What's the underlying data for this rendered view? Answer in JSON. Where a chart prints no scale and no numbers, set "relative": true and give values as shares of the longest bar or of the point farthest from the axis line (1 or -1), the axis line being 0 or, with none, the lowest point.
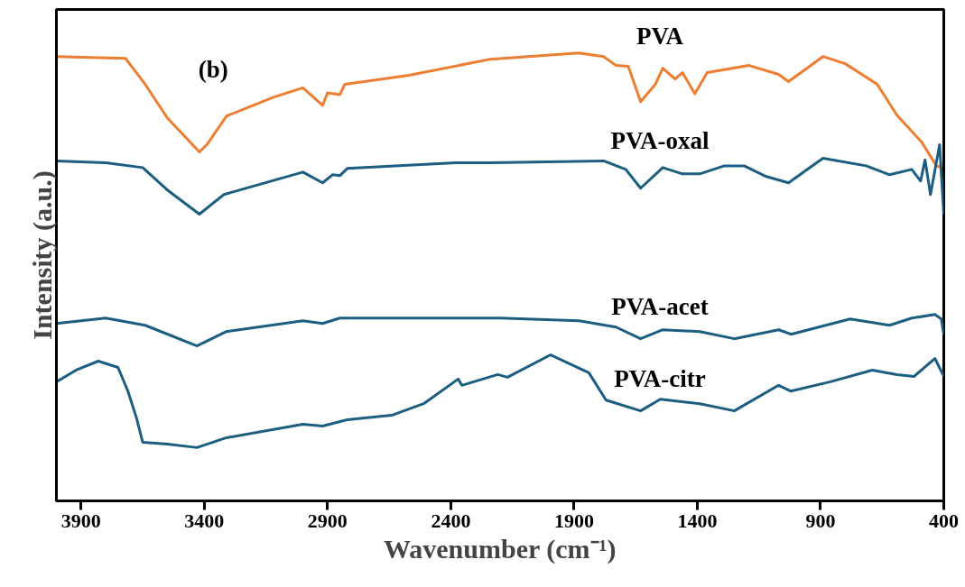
{
  "chart_data": {
    "type": "line",
    "relative": true,
    "xlabel": "Wavenumber (cm⁻¹)",
    "ylabel": "Intensity (a.u.)",
    "annotations": [
      "(b)"
    ],
    "xlim": [
      4000,
      400
    ],
    "xticks": [
      3900,
      3400,
      2900,
      2400,
      1900,
      1400,
      900,
      400
    ],
    "grid": false,
    "legend": false,
    "marker": "none",
    "line_style": "solid",
    "series": [
      {
        "name": "PVA",
        "color": "#ed7d31",
        "x": [
          4000,
          3720,
          3640,
          3550,
          3420,
          3390,
          3310,
          3120,
          3000,
          2920,
          2900,
          2850,
          2830,
          2570,
          2240,
          1880,
          1780,
          1730,
          1680,
          1630,
          1570,
          1540,
          1490,
          1460,
          1410,
          1360,
          1190,
          1070,
          1030,
          890,
          800,
          670,
          590,
          490,
          430,
          410
        ],
        "values": [
          0.992,
          0.988,
          0.93,
          0.855,
          0.779,
          0.795,
          0.859,
          0.901,
          0.922,
          0.883,
          0.911,
          0.907,
          0.93,
          0.95,
          0.986,
          1,
          0.992,
          0.972,
          0.97,
          0.891,
          0.93,
          0.966,
          0.942,
          0.956,
          0.909,
          0.956,
          0.972,
          0.952,
          0.936,
          0.992,
          0.976,
          0.93,
          0.861,
          0.801,
          0.748,
          0.744
        ]
      },
      {
        "name": "PVA-oxal",
        "color": "#1b5e82",
        "x": [
          4000,
          3800,
          3650,
          3550,
          3420,
          3320,
          3000,
          2920,
          2880,
          2850,
          2820,
          2380,
          2240,
          1780,
          1690,
          1630,
          1540,
          1460,
          1390,
          1290,
          1210,
          1120,
          1030,
          890,
          715,
          620,
          530,
          494,
          476,
          454,
          417,
          400
        ],
        "values": [
          0.759,
          0.755,
          0.744,
          0.694,
          0.64,
          0.684,
          0.734,
          0.71,
          0.728,
          0.726,
          0.742,
          0.755,
          0.755,
          0.759,
          0.74,
          0.698,
          0.744,
          0.73,
          0.73,
          0.748,
          0.748,
          0.724,
          0.71,
          0.765,
          0.748,
          0.728,
          0.74,
          0.714,
          0.761,
          0.684,
          0.795,
          0.64
        ]
      },
      {
        "name": "PVA-acet",
        "color": "#1b5e82",
        "x": [
          4000,
          3800,
          3640,
          3430,
          3310,
          3000,
          2920,
          2850,
          2200,
          1880,
          1730,
          1630,
          1540,
          1390,
          1250,
          1070,
          1020,
          780,
          620,
          530,
          436,
          410,
          400
        ],
        "values": [
          0.396,
          0.408,
          0.392,
          0.346,
          0.378,
          0.402,
          0.396,
          0.408,
          0.408,
          0.402,
          0.388,
          0.362,
          0.382,
          0.378,
          0.362,
          0.382,
          0.372,
          0.406,
          0.392,
          0.408,
          0.416,
          0.406,
          0.372
        ]
      },
      {
        "name": "PVA-citr",
        "color": "#1b5e82",
        "x": [
          4000,
          3920,
          3830,
          3750,
          3710,
          3675,
          3650,
          3550,
          3430,
          3310,
          3000,
          2920,
          2820,
          2640,
          2510,
          2370,
          2355,
          2210,
          2170,
          1995,
          1840,
          1770,
          1630,
          1550,
          1390,
          1250,
          1070,
          1020,
          860,
          690,
          590,
          520,
          436,
          400
        ],
        "values": [
          0.266,
          0.292,
          0.312,
          0.298,
          0.245,
          0.185,
          0.131,
          0.127,
          0.119,
          0.141,
          0.171,
          0.167,
          0.181,
          0.191,
          0.217,
          0.272,
          0.258,
          0.282,
          0.276,
          0.326,
          0.286,
          0.225,
          0.201,
          0.227,
          0.217,
          0.201,
          0.258,
          0.245,
          0.266,
          0.292,
          0.282,
          0.278,
          0.318,
          0.278
        ]
      }
    ]
  }
}
